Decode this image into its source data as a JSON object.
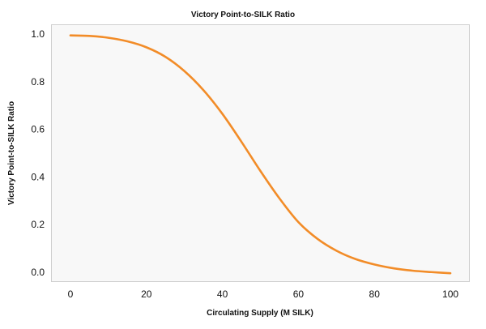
{
  "chart_data": {
    "type": "line",
    "title": "Victory Point-to-SILK Ratio",
    "xlabel": "Circulating Supply (M SILK)",
    "ylabel": "Victory Point-to-SILK Ratio",
    "xlim": [
      -5,
      105
    ],
    "ylim": [
      -0.04,
      1.04
    ],
    "xticks": [
      0,
      20,
      40,
      60,
      80,
      100
    ],
    "yticks": [
      0.0,
      0.2,
      0.4,
      0.6,
      0.8,
      1.0
    ],
    "ytick_labels": [
      "0.0",
      "0.2",
      "0.4",
      "0.6",
      "0.8",
      "1.0"
    ],
    "grid": false,
    "series": [
      {
        "color": "#f28c28",
        "x": [
          0,
          5,
          10,
          15,
          20,
          25,
          30,
          35,
          40,
          45,
          50,
          55,
          60,
          65,
          70,
          75,
          80,
          85,
          90,
          95,
          100
        ],
        "y": [
          0.995,
          0.993,
          0.985,
          0.97,
          0.945,
          0.905,
          0.845,
          0.765,
          0.665,
          0.548,
          0.425,
          0.31,
          0.21,
          0.14,
          0.09,
          0.055,
          0.032,
          0.016,
          0.006,
          0.0,
          -0.005
        ]
      }
    ]
  }
}
